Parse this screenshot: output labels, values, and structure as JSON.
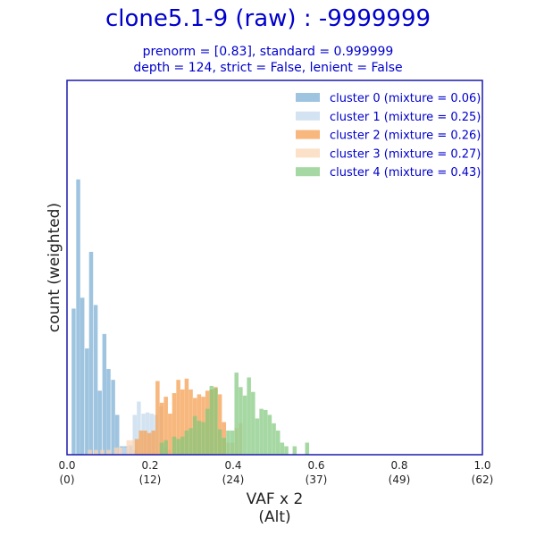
{
  "chart_data": {
    "type": "bar",
    "title": "clone5.1-9 (raw) : -9999999",
    "subtitle_lines": [
      "prenorm = [0.83], standard = 0.999999",
      "depth = 124, strict = False, lenient = False"
    ],
    "xlabel_lines": [
      "VAF x 2",
      "(Alt)"
    ],
    "ylabel": "count (weighted)",
    "xlim": [
      0,
      1
    ],
    "ylim": [
      0,
      310
    ],
    "x_ticks": [
      {
        "value": 0.0,
        "label": "0.0",
        "sublabel": "(0)"
      },
      {
        "value": 0.2,
        "label": "0.2",
        "sublabel": "(12)"
      },
      {
        "value": 0.4,
        "label": "0.4",
        "sublabel": "(24)"
      },
      {
        "value": 0.6,
        "label": "0.6",
        "sublabel": "(37)"
      },
      {
        "value": 0.8,
        "label": "0.8",
        "sublabel": "(49)"
      },
      {
        "value": 1.0,
        "label": "1.0",
        "sublabel": "(62)"
      }
    ],
    "y_ticks_visible": false,
    "legend_position": "top-right",
    "series": [
      {
        "name": "cluster 0  (mixture = 0.06)",
        "color": "#7fb0d5",
        "opacity": 0.75,
        "points": [
          [
            0.016,
            121
          ],
          [
            0.027,
            228
          ],
          [
            0.037,
            130
          ],
          [
            0.048,
            88
          ],
          [
            0.058,
            168
          ],
          [
            0.069,
            124
          ],
          [
            0.079,
            53
          ],
          [
            0.09,
            100
          ],
          [
            0.1,
            71
          ],
          [
            0.111,
            62
          ],
          [
            0.121,
            33
          ],
          [
            0.132,
            7
          ],
          [
            0.142,
            7
          ],
          [
            0.153,
            7
          ],
          [
            0.163,
            4
          ]
        ]
      },
      {
        "name": "cluster 1  (mixture = 0.25)",
        "color": "#c6d9ec",
        "opacity": 0.75,
        "points": [
          [
            0.132,
            6
          ],
          [
            0.142,
            6
          ],
          [
            0.153,
            8
          ],
          [
            0.163,
            33
          ],
          [
            0.173,
            44
          ],
          [
            0.184,
            34
          ],
          [
            0.194,
            35
          ],
          [
            0.204,
            34
          ],
          [
            0.214,
            33
          ],
          [
            0.226,
            40
          ],
          [
            0.236,
            6
          ],
          [
            0.246,
            4
          ]
        ]
      },
      {
        "name": "cluster 2  (mixture = 0.26)",
        "color": "#f5a55d",
        "opacity": 0.8,
        "points": [
          [
            0.168,
            13
          ],
          [
            0.178,
            20
          ],
          [
            0.188,
            20
          ],
          [
            0.198,
            18
          ],
          [
            0.208,
            20
          ],
          [
            0.218,
            61
          ],
          [
            0.228,
            43
          ],
          [
            0.238,
            48
          ],
          [
            0.248,
            34
          ],
          [
            0.258,
            51
          ],
          [
            0.268,
            62
          ],
          [
            0.278,
            54
          ],
          [
            0.288,
            63
          ],
          [
            0.298,
            54
          ],
          [
            0.308,
            47
          ],
          [
            0.318,
            50
          ],
          [
            0.328,
            48
          ],
          [
            0.338,
            53
          ],
          [
            0.348,
            54
          ],
          [
            0.358,
            56
          ],
          [
            0.368,
            50
          ],
          [
            0.378,
            27
          ]
        ]
      },
      {
        "name": "cluster 3  (mixture = 0.27)",
        "color": "#fbd5b5",
        "opacity": 0.75,
        "points": [
          [
            0.055,
            4
          ],
          [
            0.07,
            4
          ],
          [
            0.085,
            4
          ],
          [
            0.1,
            4
          ],
          [
            0.118,
            6
          ],
          [
            0.128,
            6
          ],
          [
            0.148,
            12
          ],
          [
            0.158,
            12
          ],
          [
            0.388,
            10
          ],
          [
            0.398,
            10
          ],
          [
            0.408,
            22
          ],
          [
            0.418,
            26
          ]
        ]
      },
      {
        "name": "cluster 4  (mixture = 0.43)",
        "color": "#7fc77a",
        "opacity": 0.7,
        "points": [
          [
            0.228,
            10
          ],
          [
            0.238,
            12
          ],
          [
            0.258,
            15
          ],
          [
            0.268,
            13
          ],
          [
            0.278,
            15
          ],
          [
            0.288,
            20
          ],
          [
            0.298,
            22
          ],
          [
            0.308,
            32
          ],
          [
            0.318,
            28
          ],
          [
            0.328,
            27
          ],
          [
            0.338,
            38
          ],
          [
            0.348,
            57
          ],
          [
            0.358,
            55
          ],
          [
            0.368,
            21
          ],
          [
            0.378,
            14
          ],
          [
            0.388,
            20
          ],
          [
            0.398,
            20
          ],
          [
            0.408,
            68
          ],
          [
            0.418,
            56
          ],
          [
            0.428,
            49
          ],
          [
            0.438,
            64
          ],
          [
            0.448,
            52
          ],
          [
            0.458,
            30
          ],
          [
            0.468,
            38
          ],
          [
            0.478,
            37
          ],
          [
            0.488,
            33
          ],
          [
            0.498,
            26
          ],
          [
            0.508,
            20
          ],
          [
            0.518,
            10
          ],
          [
            0.528,
            7
          ],
          [
            0.548,
            7
          ],
          [
            0.578,
            10
          ]
        ]
      }
    ]
  }
}
